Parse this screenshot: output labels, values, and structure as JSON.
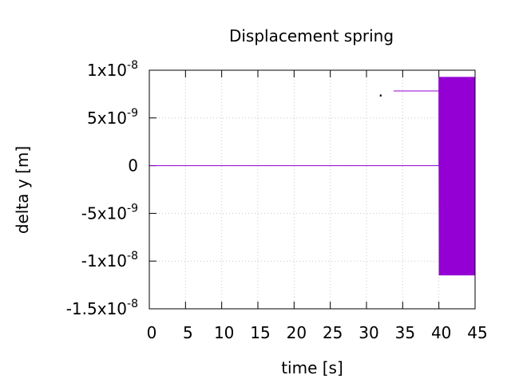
{
  "chart_data": {
    "type": "line",
    "title": "Displacement spring",
    "xlabel": "time [s]",
    "ylabel": "delta y [m]",
    "xlim": [
      0,
      45
    ],
    "ylim": [
      -1.5e-08,
      1e-08
    ],
    "grid": true,
    "legend_position": "top-right",
    "x_ticks": [
      {
        "value": 0,
        "label": "0"
      },
      {
        "value": 5,
        "label": "5"
      },
      {
        "value": 10,
        "label": "10"
      },
      {
        "value": 15,
        "label": "15"
      },
      {
        "value": 20,
        "label": "20"
      },
      {
        "value": 25,
        "label": "25"
      },
      {
        "value": 30,
        "label": "30"
      },
      {
        "value": 35,
        "label": "35"
      },
      {
        "value": 40,
        "label": "40"
      },
      {
        "value": 45,
        "label": "45"
      }
    ],
    "y_ticks": [
      {
        "value": 1e-08,
        "mant": "1x10",
        "exp": "-8"
      },
      {
        "value": 5e-09,
        "mant": "5x10",
        "exp": "-9"
      },
      {
        "value": 0,
        "mant": "0",
        "exp": ""
      },
      {
        "value": -5e-09,
        "mant": "-5x10",
        "exp": "-9"
      },
      {
        "value": -1e-08,
        "mant": "-1x10",
        "exp": "-8"
      },
      {
        "value": -1.5e-08,
        "mant": "-1.5x10",
        "exp": "-8"
      }
    ],
    "series": [
      {
        "name": ".",
        "color": "#9400d3",
        "segments": [
          {
            "type": "constant",
            "x": [
              0,
              40
            ],
            "y": 0
          },
          {
            "type": "oscillation",
            "x": [
              40,
              45
            ],
            "max": 9.3e-09,
            "min": -1.15e-08,
            "cycles": 60
          }
        ]
      }
    ]
  }
}
